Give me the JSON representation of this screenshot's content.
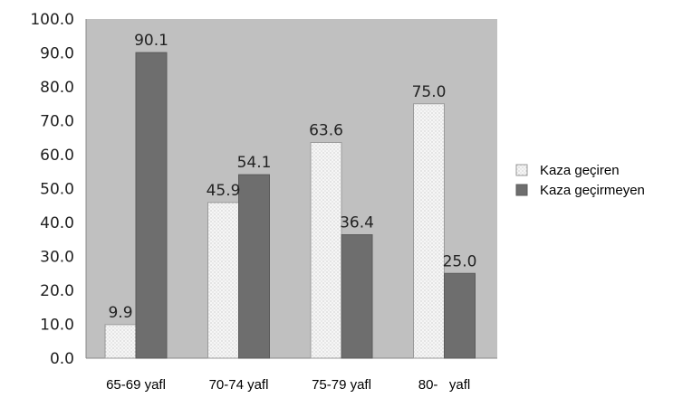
{
  "chart_data": {
    "type": "bar",
    "categories": [
      "65-69 yafl",
      "70-74 yafl",
      "75-79 yafl",
      "80-   yafl"
    ],
    "series": [
      {
        "name": "Kaza geçiren",
        "values": [
          9.9,
          45.9,
          63.6,
          75.0
        ],
        "labels": [
          "9.9",
          "45.9",
          "63.6",
          "75.0"
        ]
      },
      {
        "name": "Kaza geçirmeyen",
        "values": [
          90.1,
          54.1,
          36.4,
          25.0
        ],
        "labels": [
          "90.1",
          "54.1",
          "36.4",
          "25.0"
        ]
      }
    ],
    "ylim": [
      0,
      100
    ],
    "yticks": [
      "0.0",
      "10.0",
      "20.0",
      "30.0",
      "40.0",
      "50.0",
      "60.0",
      "70.0",
      "80.0",
      "90.0",
      "100.0"
    ],
    "grid": false,
    "legend_position": "right",
    "title": "",
    "xlabel": "",
    "ylabel": ""
  },
  "colors": {
    "plot_background": "#c0c0c0",
    "series_1_fill": "#f2f2f2",
    "series_2_fill": "#6e6e6e"
  }
}
